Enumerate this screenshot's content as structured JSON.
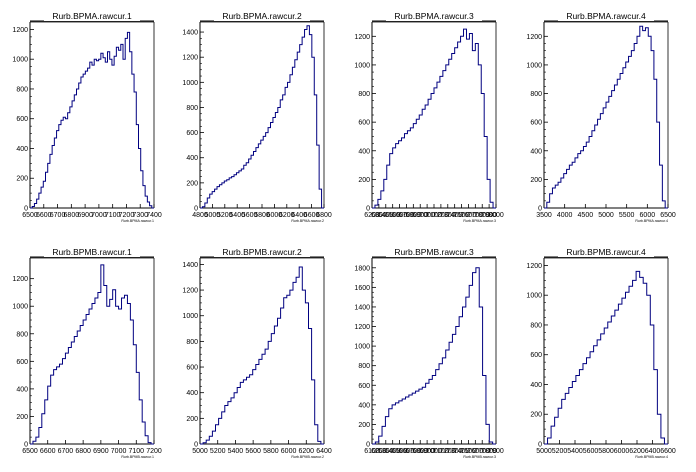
{
  "colors": {
    "line": "#000080",
    "axis": "#000000",
    "frame": "#000000",
    "background": "#ffffff"
  },
  "chart_data": [
    {
      "type": "bar",
      "title": "Rurb.BPMA.rawcur.1",
      "xlabel": "Rurb.BPMA.rawcur.1",
      "ylim": [
        0,
        1250
      ],
      "yticks": [
        0,
        200,
        400,
        600,
        800,
        1000,
        1200
      ],
      "xlim": [
        6500,
        7400
      ],
      "xticks": [
        6500,
        6600,
        6700,
        6800,
        6900,
        7000,
        7100,
        7200,
        7300,
        7400
      ],
      "xticklabels": [
        "6500",
        "6600",
        "6700",
        "6800",
        "6900",
        "7000",
        "7100",
        "7200",
        "7300",
        "7400"
      ],
      "values": [
        0,
        10,
        30,
        60,
        100,
        140,
        180,
        240,
        300,
        360,
        420,
        470,
        520,
        560,
        590,
        610,
        600,
        640,
        680,
        720,
        760,
        800,
        840,
        880,
        900,
        920,
        940,
        980,
        960,
        1000,
        990,
        1000,
        1040,
        1010,
        980,
        1050,
        1000,
        960,
        1020,
        1080,
        1060,
        1100,
        1000,
        1140,
        1180,
        1050,
        900,
        780,
        560,
        400,
        250,
        150,
        80,
        40,
        15,
        0
      ]
    },
    {
      "type": "bar",
      "title": "Rurb.BPMA.rawcur.2",
      "xlabel": "Rurb.BPMA.rawcur.2",
      "ylim": [
        0,
        1480
      ],
      "yticks": [
        0,
        200,
        400,
        600,
        800,
        1000,
        1200,
        1400
      ],
      "xlim": [
        4800,
        6800
      ],
      "xticks": [
        4800,
        5000,
        5200,
        5400,
        5600,
        5800,
        6000,
        6200,
        6400,
        6600,
        6800
      ],
      "xticklabels": [
        "4800",
        "5000",
        "5200",
        "5400",
        "5600",
        "5800",
        "6000",
        "6200",
        "6400",
        "6600",
        "6800"
      ],
      "values": [
        0,
        10,
        40,
        80,
        110,
        130,
        150,
        170,
        185,
        200,
        215,
        225,
        240,
        250,
        265,
        280,
        295,
        310,
        340,
        360,
        390,
        420,
        450,
        480,
        510,
        540,
        570,
        600,
        640,
        680,
        720,
        760,
        800,
        860,
        900,
        960,
        1000,
        1060,
        1120,
        1180,
        1240,
        1300,
        1360,
        1420,
        1450,
        1380,
        1200,
        900,
        500,
        150,
        0
      ]
    },
    {
      "type": "bar",
      "title": "Rurb.BPMA.rawcur.3",
      "xlabel": "Rurb.BPMA.rawcur.3",
      "ylim": [
        0,
        1300
      ],
      "yticks": [
        0,
        200,
        400,
        600,
        800,
        1000,
        1200
      ],
      "xlim": [
        6200,
        8000
      ],
      "xticks": [
        6200,
        6300,
        6400,
        6500,
        6600,
        6700,
        6800,
        6900,
        7000,
        7100,
        7200,
        7300,
        7400,
        7500,
        7600,
        7700,
        7800,
        7900,
        8000
      ],
      "xticklabels": [
        "6200",
        "6300",
        "6400",
        "6500",
        "6600",
        "6700",
        "6800",
        "6900",
        "7000",
        "7100",
        "7200",
        "7300",
        "7400",
        "7500",
        "7600",
        "7700",
        "7800",
        "7900",
        "8000"
      ],
      "values": [
        0,
        20,
        60,
        120,
        200,
        300,
        380,
        420,
        450,
        470,
        490,
        520,
        540,
        560,
        590,
        620,
        650,
        690,
        720,
        760,
        800,
        840,
        880,
        920,
        960,
        1000,
        1040,
        1080,
        1120,
        1160,
        1200,
        1250,
        1180,
        1220,
        1100,
        1150,
        1000,
        800,
        500,
        200,
        40,
        0
      ]
    },
    {
      "type": "bar",
      "title": "Rurb.BPMA.rawcur.4",
      "xlabel": "Rurb.BPMA.rawcur.4",
      "ylim": [
        0,
        1300
      ],
      "yticks": [
        0,
        200,
        400,
        600,
        800,
        1000,
        1200
      ],
      "xlim": [
        3500,
        6500
      ],
      "xticks": [
        3500,
        4000,
        4500,
        5000,
        5500,
        6000,
        6500
      ],
      "xticklabels": [
        "3500",
        "4000",
        "4500",
        "5000",
        "5500",
        "6000",
        "6500"
      ],
      "values": [
        0,
        40,
        100,
        140,
        160,
        180,
        210,
        240,
        270,
        300,
        320,
        350,
        380,
        400,
        430,
        460,
        500,
        540,
        580,
        620,
        660,
        700,
        740,
        780,
        820,
        860,
        900,
        940,
        980,
        1020,
        1060,
        1100,
        1150,
        1200,
        1270,
        1240,
        1260,
        1200,
        1100,
        900,
        600,
        300,
        50,
        0
      ]
    },
    {
      "type": "bar",
      "title": "Rurb.BPMB.rawcur.1",
      "xlabel": "Rurb.BPMB.rawcur.1",
      "ylim": [
        0,
        1350
      ],
      "yticks": [
        0,
        200,
        400,
        600,
        800,
        1000,
        1200
      ],
      "xlim": [
        6500,
        7200
      ],
      "xticks": [
        6500,
        6600,
        6700,
        6800,
        6900,
        7000,
        7100,
        7200
      ],
      "xticklabels": [
        "6500",
        "6600",
        "6700",
        "6800",
        "6900",
        "7000",
        "7100",
        "7200"
      ],
      "values": [
        0,
        20,
        50,
        120,
        220,
        320,
        420,
        500,
        540,
        560,
        580,
        620,
        660,
        700,
        740,
        780,
        820,
        860,
        900,
        940,
        980,
        1020,
        1060,
        1100,
        1300,
        1150,
        1000,
        1050,
        1120,
        1000,
        980,
        1060,
        1080,
        1020,
        900,
        720,
        520,
        320,
        160,
        60,
        10,
        0
      ]
    },
    {
      "type": "bar",
      "title": "Rurb.BPMB.rawcur.2",
      "xlabel": "Rurb.BPMB.rawcur.2",
      "ylim": [
        0,
        1450
      ],
      "yticks": [
        0,
        200,
        400,
        600,
        800,
        1000,
        1200,
        1400
      ],
      "xlim": [
        5000,
        6400
      ],
      "xticks": [
        5000,
        5200,
        5400,
        5600,
        5800,
        6000,
        6200,
        6400
      ],
      "xticklabels": [
        "5000",
        "5200",
        "5400",
        "5600",
        "5800",
        "6000",
        "6200",
        "6400"
      ],
      "values": [
        0,
        10,
        30,
        60,
        100,
        150,
        200,
        250,
        300,
        330,
        360,
        400,
        440,
        480,
        500,
        520,
        540,
        580,
        620,
        660,
        700,
        740,
        800,
        860,
        920,
        980,
        1060,
        1140,
        1160,
        1200,
        1260,
        1300,
        1380,
        1200,
        1100,
        900,
        500,
        150,
        20,
        0
      ]
    },
    {
      "type": "bar",
      "title": "Rurb.BPMB.rawcur.3",
      "xlabel": "Rurb.BPMB.rawcur.3",
      "ylim": [
        0,
        1900
      ],
      "yticks": [
        0,
        200,
        400,
        600,
        800,
        1000,
        1200,
        1400,
        1600,
        1800
      ],
      "xlim": [
        6100,
        7900
      ],
      "xticks": [
        6100,
        6200,
        6300,
        6400,
        6500,
        6600,
        6700,
        6800,
        6900,
        7000,
        7100,
        7200,
        7300,
        7400,
        7500,
        7600,
        7700,
        7800,
        7900
      ],
      "xticklabels": [
        "6100",
        "6200",
        "6300",
        "6400",
        "6500",
        "6600",
        "6700",
        "6800",
        "6900",
        "7000",
        "7100",
        "7200",
        "7300",
        "7400",
        "7500",
        "7600",
        "7700",
        "7800",
        "7900"
      ],
      "values": [
        0,
        20,
        80,
        180,
        280,
        360,
        400,
        420,
        440,
        460,
        480,
        500,
        520,
        540,
        560,
        580,
        620,
        660,
        700,
        760,
        820,
        880,
        960,
        1040,
        1120,
        1200,
        1300,
        1400,
        1500,
        1620,
        1750,
        1800,
        1400,
        700,
        200,
        20,
        0
      ]
    },
    {
      "type": "bar",
      "title": "Rurb.BPMB.rawcur.4",
      "xlabel": "Rurb.BPMB.rawcur.4",
      "ylim": [
        0,
        1250
      ],
      "yticks": [
        0,
        200,
        400,
        600,
        800,
        1000,
        1200
      ],
      "xlim": [
        5000,
        6600
      ],
      "xticks": [
        5000,
        5200,
        5400,
        5600,
        5800,
        6000,
        6200,
        6400,
        6600
      ],
      "xticklabels": [
        "5000",
        "5200",
        "5400",
        "5600",
        "5800",
        "6000",
        "6200",
        "6400",
        "6600"
      ],
      "values": [
        0,
        40,
        120,
        180,
        240,
        300,
        340,
        380,
        420,
        460,
        500,
        540,
        580,
        620,
        660,
        700,
        740,
        780,
        820,
        860,
        900,
        940,
        980,
        1020,
        1060,
        1100,
        1160,
        1120,
        1080,
        1000,
        800,
        500,
        200,
        40,
        0
      ]
    }
  ]
}
